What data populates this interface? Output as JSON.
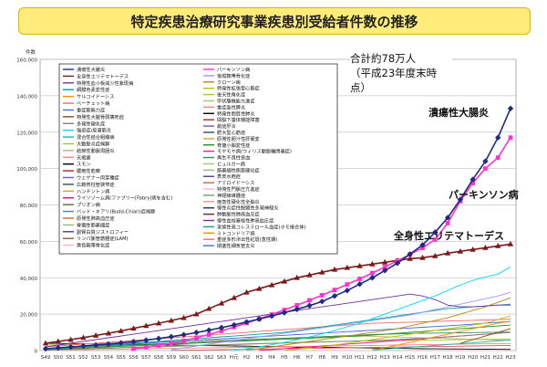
{
  "title": "特定疾患治療研究事業疾患別受給者件数の推移",
  "total_note": {
    "line1": "合計約78万人",
    "line2": "（平成23年度末時点）"
  },
  "callouts": {
    "uc": "潰瘍性大腸炎",
    "pd": "パーキンソン病",
    "sle": "全身性エリテマトーデス"
  },
  "chart_data": {
    "type": "line",
    "ylabel": "件数",
    "ylim": [
      0,
      160000
    ],
    "yticks": [
      "0",
      "20,000",
      "40,000",
      "60,000",
      "80,000",
      "100,000",
      "120,000",
      "140,000",
      "160,000"
    ],
    "categories": [
      "S49",
      "S50",
      "S51",
      "S52",
      "S53",
      "S54",
      "S55",
      "S56",
      "S57",
      "S58",
      "S59",
      "S60",
      "S61",
      "S62",
      "S63",
      "H元",
      "H2",
      "H3",
      "H4",
      "H5",
      "H6",
      "H7",
      "H8",
      "H9",
      "H10",
      "H11",
      "H12",
      "H13",
      "H14",
      "H15",
      "H16",
      "H17",
      "H18",
      "H19",
      "H20",
      "H21",
      "H22",
      "H23"
    ],
    "legend_left": [
      "潰瘍性大腸炎",
      "全身性エリテマトーデス",
      "特発性血小板減少性紫斑病",
      "網膜色素変性症",
      "サルコイドーシス",
      "ベーチェット病",
      "重症筋無力症",
      "特発性大腿骨頭壊死症",
      "多発性硬化症",
      "強皮症/皮膚筋炎",
      "混合性結合組織病",
      "大動脈炎症候群",
      "結節性動脈周囲炎",
      "天疱瘡",
      "スモン",
      "膿疱性乾癬",
      "ウェゲナー肉芽腫症",
      "広範脊柱管狭窄症",
      "ハンチントン病",
      "ライソゾーム病(ファブリー[Fabry]病を含む)",
      "プリオン病",
      "バッド・キアリ(Budd-Chiari)症候群",
      "原発性肺高血圧症",
      "脊髄性筋萎縮症",
      "副腎白質ジストロフィー",
      "リンパ脈管筋腫症(LAM)",
      "黄色靱帯骨化症"
    ],
    "legend_right": [
      "パーキンソン病",
      "後縦靱帯骨化症",
      "クローン病",
      "特発性拡張型心筋症",
      "後天性角化症",
      "甲状腺機能亢進症",
      "重症急性膵炎",
      "特発性間質性肺炎",
      "間脳下垂体機能障害",
      "劇症肝炎",
      "肥大型心筋症",
      "原発性胆汁性肝硬変",
      "脊髄小脳変性症",
      "モヤモヤ病(ウィリス動脈輪閉塞症)",
      "再生不良性貧血",
      "ビュルガー病",
      "筋萎縮性側索硬化症",
      "表皮水疱症",
      "アミロイドーシス",
      "特発性門脈圧亢進症",
      "神経線維腫症",
      "亜急性硬化性全脳炎",
      "慢性炎症性脱髄性多発神経炎",
      "肺動脈性肺高血圧症",
      "慢性血栓塞栓性肺高血圧症",
      "家族性高コレステロール血症(ホモ接合体)",
      "ミトコンドリア病",
      "重症多形滲出性紅斑(急性期)",
      "閉塞性細気管支炎"
    ],
    "series": [
      {
        "name": "潰瘍性大腸炎",
        "color": "#1f2a80",
        "marker": "diamond",
        "values": [
          1000,
          1500,
          2000,
          2500,
          3000,
          3600,
          4200,
          4900,
          5700,
          6600,
          7600,
          8700,
          9900,
          11200,
          12600,
          14100,
          15700,
          17300,
          19000,
          20800,
          22700,
          24700,
          27000,
          30000,
          33000,
          36500,
          40000,
          44000,
          48000,
          53000,
          58000,
          65000,
          73000,
          83000,
          94000,
          104000,
          117000,
          133000
        ]
      },
      {
        "name": "パーキンソン病",
        "color": "#ff33cc",
        "marker": "square",
        "values": [
          null,
          null,
          null,
          null,
          null,
          null,
          null,
          1000,
          1800,
          2800,
          4000,
          5400,
          7000,
          8800,
          10800,
          12900,
          15100,
          17400,
          19800,
          22300,
          24900,
          27600,
          30400,
          33300,
          36300,
          39400,
          42600,
          45900,
          49300,
          52800,
          56400,
          61000,
          70000,
          82000,
          92000,
          100000,
          106000,
          117000
        ]
      },
      {
        "name": "全身性エリテマトーデス",
        "color": "#7b1a1a",
        "marker": "triangle",
        "values": [
          4000,
          5000,
          6000,
          7100,
          8300,
          9500,
          10800,
          12200,
          13600,
          15000,
          16500,
          18000,
          20000,
          23000,
          26000,
          29000,
          32000,
          34000,
          36000,
          38000,
          40000,
          41500,
          43000,
          44500,
          45500,
          46500,
          47500,
          48500,
          49500,
          50500,
          51000,
          52000,
          53500,
          54500,
          55500,
          56500,
          57500,
          58500
        ]
      },
      {
        "name": "強皮症/皮膚筋炎",
        "color": "#00d8ff",
        "marker": "none",
        "values": [
          null,
          null,
          null,
          null,
          null,
          null,
          null,
          null,
          null,
          null,
          null,
          null,
          null,
          null,
          null,
          200,
          1000,
          2000,
          3200,
          4500,
          6000,
          7500,
          9200,
          11000,
          13000,
          15000,
          17500,
          20000,
          22500,
          25000,
          27500,
          30000,
          33000,
          36000,
          38500,
          40500,
          42000,
          46000
        ]
      },
      {
        "name": "特発性血小板減少性紫斑病",
        "color": "#7030a0",
        "marker": "none",
        "values": [
          2000,
          3000,
          4000,
          5000,
          6000,
          7000,
          8000,
          9000,
          10000,
          11000,
          12000,
          13000,
          14000,
          15000,
          16000,
          17000,
          18000,
          19000,
          20000,
          21000,
          22000,
          23000,
          24000,
          25000,
          26000,
          27000,
          28000,
          29000,
          30000,
          31000,
          30000,
          28000,
          25000,
          24000,
          24000,
          24500,
          25000,
          25000
        ]
      },
      {
        "name": "後縦靱帯骨化症",
        "color": "#9999ff",
        "marker": "none",
        "values": [
          null,
          null,
          null,
          null,
          null,
          null,
          null,
          null,
          null,
          null,
          500,
          1500,
          2500,
          3500,
          4500,
          5500,
          6500,
          7500,
          8500,
          9500,
          10500,
          11500,
          12500,
          13500,
          14500,
          15500,
          16500,
          17500,
          18500,
          19500,
          21000,
          22500,
          24000,
          25500,
          27000,
          28500,
          30000,
          32000
        ]
      },
      {
        "name": "クローン病",
        "color": "#b8860b",
        "marker": "none",
        "values": [
          null,
          null,
          null,
          null,
          null,
          null,
          null,
          null,
          null,
          null,
          null,
          null,
          null,
          null,
          null,
          null,
          300,
          1000,
          2000,
          3000,
          4000,
          5000,
          6000,
          7000,
          8000,
          9000,
          10000,
          11000,
          12000,
          13500,
          15000,
          16500,
          18000,
          20000,
          22000,
          24000,
          26500,
          29000
        ]
      },
      {
        "name": "網膜色素変性症",
        "color": "#00a0a0",
        "marker": "none",
        "values": [
          500,
          1000,
          1500,
          2000,
          2500,
          3000,
          3500,
          4000,
          4500,
          5000,
          5500,
          6000,
          6500,
          7000,
          7500,
          8000,
          8500,
          9000,
          9500,
          10000,
          11000,
          12000,
          13000,
          14000,
          15000,
          16000,
          17000,
          18000,
          19000,
          20000,
          21000,
          22000,
          23000,
          23500,
          24000,
          24500,
          25000,
          25500
        ]
      },
      {
        "name": "特発性拡張型心筋症",
        "color": "#c0c000",
        "marker": "none",
        "values": [
          null,
          null,
          null,
          null,
          null,
          null,
          null,
          null,
          null,
          null,
          null,
          null,
          null,
          null,
          null,
          null,
          null,
          null,
          null,
          200,
          600,
          1200,
          2000,
          3000,
          4000,
          5000,
          6000,
          7000,
          8000,
          9000,
          10000,
          11000,
          12000,
          13000,
          14000,
          15000,
          17000,
          19000
        ]
      },
      {
        "name": "サルコイドーシス",
        "color": "#ff8c00",
        "marker": "none",
        "values": [
          null,
          null,
          null,
          null,
          null,
          null,
          null,
          null,
          null,
          null,
          null,
          null,
          null,
          null,
          null,
          null,
          null,
          null,
          null,
          null,
          null,
          null,
          null,
          null,
          null,
          null,
          500,
          1500,
          3000,
          4500,
          6000,
          7500,
          9000,
          10500,
          12000,
          13500,
          15000,
          16000
        ]
      },
      {
        "name": "重症筋無力症",
        "color": "#4169e1",
        "marker": "none",
        "values": [
          800,
          1200,
          1600,
          2000,
          2400,
          2800,
          3200,
          3600,
          4000,
          4400,
          4800,
          5200,
          5600,
          6000,
          6400,
          6800,
          7200,
          7600,
          8000,
          8400,
          8800,
          9200,
          9600,
          10000,
          10400,
          10800,
          11200,
          11600,
          12000,
          12400,
          12800,
          13200,
          13600,
          14000,
          14500,
          15000,
          15500,
          16000
        ]
      },
      {
        "name": "ベーチェット病",
        "color": "#ff6666",
        "marker": "none",
        "values": [
          2000,
          2500,
          3000,
          3500,
          4000,
          4500,
          5000,
          5500,
          6000,
          6500,
          7000,
          7500,
          8000,
          8500,
          9000,
          9500,
          10000,
          10500,
          11000,
          11500,
          12000,
          12500,
          13000,
          13500,
          14000,
          14500,
          15000,
          15200,
          15400,
          15600,
          15800,
          16000,
          16200,
          16400,
          16600,
          16800,
          17000,
          17200
        ]
      },
      {
        "name": "脊髄小脳変性症",
        "color": "#228b22",
        "marker": "none",
        "values": [
          500,
          800,
          1100,
          1400,
          1700,
          2000,
          2300,
          2600,
          2900,
          3200,
          3500,
          3800,
          4100,
          4400,
          4700,
          5000,
          5300,
          5600,
          5900,
          6200,
          6500,
          6800,
          7100,
          7400,
          7700,
          8000,
          8500,
          9000,
          9500,
          10000,
          10500,
          11000,
          11500,
          12000,
          12500,
          13000,
          13500,
          14000
        ]
      },
      {
        "name": "特発性大腿骨頭壊死症",
        "color": "#8b4513",
        "marker": "none",
        "values": [
          null,
          null,
          null,
          null,
          null,
          null,
          null,
          null,
          null,
          null,
          null,
          null,
          null,
          null,
          null,
          null,
          null,
          null,
          null,
          null,
          null,
          null,
          null,
          null,
          null,
          null,
          null,
          null,
          null,
          null,
          null,
          null,
          null,
          4000,
          6000,
          8000,
          10000,
          12000
        ]
      },
      {
        "name": "多発性硬化症",
        "color": "#808080",
        "marker": "none",
        "values": [
          300,
          500,
          700,
          900,
          1100,
          1300,
          1500,
          1700,
          1900,
          2100,
          2300,
          2500,
          2700,
          2900,
          3100,
          3300,
          3500,
          3700,
          3900,
          4100,
          4300,
          4500,
          4700,
          4900,
          5100,
          5300,
          5500,
          5800,
          6100,
          6400,
          6700,
          7000,
          7500,
          8000,
          8500,
          9000,
          9500,
          10000
        ]
      },
      {
        "name": "モヤモヤ病(ウィリス動脈輪閉塞症)",
        "color": "#ff1493",
        "marker": "none",
        "values": [
          null,
          null,
          null,
          null,
          null,
          null,
          null,
          null,
          null,
          null,
          null,
          null,
          null,
          null,
          null,
          null,
          null,
          200,
          500,
          1000,
          1500,
          2000,
          2500,
          3000,
          3500,
          4000,
          4500,
          5000,
          5500,
          6000,
          6500,
          7000,
          7500,
          8000,
          8500,
          9000,
          9500,
          10000
        ]
      },
      {
        "name": "再生不良性貧血",
        "color": "#2e8b57",
        "marker": "none",
        "values": [
          1000,
          1300,
          1600,
          1900,
          2200,
          2500,
          2800,
          3100,
          3400,
          3700,
          4000,
          4300,
          4600,
          4900,
          5200,
          5500,
          5800,
          6100,
          6400,
          6700,
          7000,
          7300,
          7600,
          7900,
          8200,
          8500,
          8800,
          9000,
          9200,
          9400,
          9500,
          9600,
          9700,
          9800,
          9900,
          10000,
          10100,
          10200
        ]
      },
      {
        "name": "大動脈炎症候群",
        "color": "#9acd32",
        "marker": "none",
        "values": [
          500,
          700,
          900,
          1100,
          1300,
          1500,
          1700,
          1900,
          2100,
          2300,
          2500,
          2700,
          2900,
          3100,
          3300,
          3500,
          3700,
          3900,
          4100,
          4300,
          4500,
          4700,
          4900,
          5000,
          5100,
          5200,
          5300,
          5400,
          5500,
          5600,
          5700,
          5800,
          5900,
          6000,
          6100,
          6200,
          6300,
          6400
        ]
      },
      {
        "name": "混合性結合組織病",
        "color": "#20b2aa",
        "marker": "none",
        "values": [
          null,
          null,
          null,
          null,
          null,
          null,
          null,
          null,
          null,
          null,
          null,
          null,
          null,
          null,
          null,
          null,
          null,
          null,
          null,
          null,
          null,
          null,
          null,
          null,
          null,
          null,
          300,
          800,
          1300,
          1800,
          2300,
          2800,
          3300,
          3800,
          4300,
          4800,
          5300,
          5800
        ]
      },
      {
        "name": "ビュルガー病",
        "color": "#bdb76b",
        "marker": "none",
        "values": [
          3000,
          3200,
          3400,
          3600,
          3800,
          4000,
          4200,
          4400,
          4600,
          4800,
          5000,
          5200,
          5400,
          5600,
          5800,
          6000,
          6200,
          6400,
          6600,
          6800,
          7000,
          7200,
          7400,
          7600,
          7800,
          8000,
          7800,
          7600,
          7400,
          7200,
          7000,
          6800,
          6600,
          6400,
          6200,
          6000,
          5800,
          5600
        ]
      },
      {
        "name": "天疱瘡",
        "color": "#ff8080",
        "marker": "none",
        "values": [
          200,
          300,
          400,
          500,
          600,
          700,
          800,
          900,
          1000,
          1100,
          1200,
          1300,
          1400,
          1500,
          1600,
          1700,
          1800,
          1900,
          2000,
          2100,
          2200,
          2300,
          2400,
          2500,
          2600,
          2700,
          2800,
          2900,
          3000,
          3100,
          3200,
          3300,
          3400,
          3500,
          3600,
          3700,
          3800,
          3900
        ]
      },
      {
        "name": "アミロイドーシス",
        "color": "#cd5c5c",
        "marker": "none",
        "values": [
          null,
          null,
          null,
          null,
          null,
          null,
          null,
          null,
          null,
          null,
          100,
          200,
          300,
          400,
          500,
          600,
          700,
          800,
          900,
          1000,
          1100,
          1200,
          1300,
          1400,
          1500,
          1600,
          1700,
          1800,
          1900,
          2000,
          2100,
          2200,
          2300,
          2400,
          2500,
          2600,
          2700,
          2800
        ]
      },
      {
        "name": "スモン",
        "color": "#000000",
        "marker": "none",
        "values": [
          4000,
          3900,
          3800,
          3700,
          3600,
          3500,
          3400,
          3300,
          3200,
          3100,
          3000,
          2900,
          2800,
          2700,
          2600,
          2500,
          2400,
          2300,
          2200,
          2100,
          2000,
          1900,
          1800,
          1700,
          1600,
          1500,
          1400,
          1300,
          1200,
          1100,
          1000,
          950,
          900,
          850,
          800,
          750,
          700,
          650
        ]
      }
    ]
  }
}
